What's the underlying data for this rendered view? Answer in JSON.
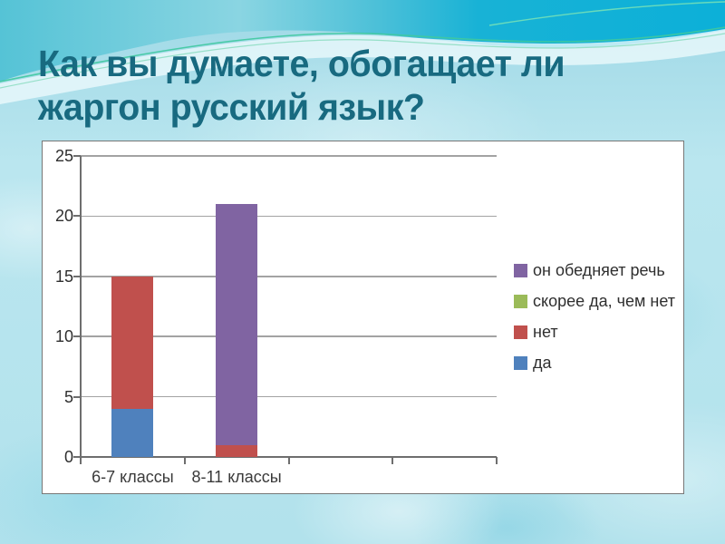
{
  "slide": {
    "title_line1": "Как вы думаете, обогащает ли",
    "title_line2": "жаргон русский язык?",
    "title_color": "#186a80"
  },
  "chart_data": {
    "type": "bar",
    "stacked": true,
    "title": "",
    "categories": [
      "6-7 классы",
      "8-11 классы"
    ],
    "series": [
      {
        "name": "да",
        "color": "#4f81bd",
        "values": [
          4,
          0
        ]
      },
      {
        "name": "нет",
        "color": "#c0504d",
        "values": [
          11,
          1
        ]
      },
      {
        "name": "скорее да, чем нет",
        "color": "#9bbb59",
        "values": [
          0,
          0
        ]
      },
      {
        "name": "он обедняет речь",
        "color": "#8064a2",
        "values": [
          0,
          20
        ]
      }
    ],
    "stack_totals": [
      15,
      21
    ],
    "ylim": [
      0,
      25
    ],
    "yticks": [
      0,
      5,
      10,
      15,
      20,
      25
    ],
    "grid": true,
    "x_slot_count": 4,
    "legend_position": "right",
    "legend_order": [
      "он обедняет речь",
      "скорее да, чем нет",
      "нет",
      "да"
    ]
  }
}
